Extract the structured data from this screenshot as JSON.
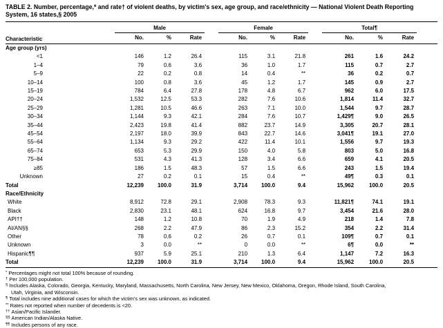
{
  "title": "TABLE 2. Number, percentage,* and rate† of violent deaths, by victim's sex, age group, and race/ethnicity — National Violent Death Reporting System, 16 states,§ 2005",
  "columns": {
    "characteristic": "Characteristic",
    "groups": [
      {
        "label": "Male",
        "sub": [
          "No.",
          "%",
          "Rate"
        ]
      },
      {
        "label": "Female",
        "sub": [
          "No.",
          "%",
          "Rate"
        ]
      },
      {
        "label": "Total¶",
        "sub": [
          "No.",
          "%",
          "Rate"
        ]
      }
    ]
  },
  "sections": [
    {
      "header": "Age group (yrs)",
      "label_align": "right",
      "rows": [
        {
          "label": "<1",
          "male": [
            "146",
            "1.2",
            "26.4"
          ],
          "female": [
            "115",
            "3.1",
            "21.8"
          ],
          "total": [
            "261",
            "1.6",
            "24.2"
          ]
        },
        {
          "label": "1–4",
          "male": [
            "79",
            "0.6",
            "3.6"
          ],
          "female": [
            "36",
            "1.0",
            "1.7"
          ],
          "total": [
            "115",
            "0.7",
            "2.7"
          ]
        },
        {
          "label": "5–9",
          "male": [
            "22",
            "0.2",
            "0.8"
          ],
          "female": [
            "14",
            "0.4",
            "**"
          ],
          "total": [
            "36",
            "0.2",
            "0.7"
          ]
        },
        {
          "label": "10–14",
          "male": [
            "100",
            "0.8",
            "3.6"
          ],
          "female": [
            "45",
            "1.2",
            "1.7"
          ],
          "total": [
            "145",
            "0.9",
            "2.7"
          ]
        },
        {
          "label": "15–19",
          "male": [
            "784",
            "6.4",
            "27.8"
          ],
          "female": [
            "178",
            "4.8",
            "6.7"
          ],
          "total": [
            "962",
            "6.0",
            "17.5"
          ]
        },
        {
          "label": "20–24",
          "male": [
            "1,532",
            "12.5",
            "53.3"
          ],
          "female": [
            "282",
            "7.6",
            "10.6"
          ],
          "total": [
            "1,814",
            "11.4",
            "32.7"
          ]
        },
        {
          "label": "25–29",
          "male": [
            "1,281",
            "10.5",
            "46.6"
          ],
          "female": [
            "263",
            "7.1",
            "10.0"
          ],
          "total": [
            "1,544",
            "9.7",
            "28.7"
          ]
        },
        {
          "label": "30–34",
          "male": [
            "1,144",
            "9.3",
            "42.1"
          ],
          "female": [
            "284",
            "7.6",
            "10.7"
          ],
          "total": [
            "1,429¶",
            "9.0",
            "26.5"
          ]
        },
        {
          "label": "35–44",
          "male": [
            "2,423",
            "19.8",
            "41.4"
          ],
          "female": [
            "882",
            "23.7",
            "14.9"
          ],
          "total": [
            "3,305",
            "20.7",
            "28.1"
          ]
        },
        {
          "label": "45–54",
          "male": [
            "2,197",
            "18.0",
            "39.9"
          ],
          "female": [
            "843",
            "22.7",
            "14.6"
          ],
          "total": [
            "3,041¶",
            "19.1",
            "27.0"
          ]
        },
        {
          "label": "55–64",
          "male": [
            "1,134",
            "9.3",
            "29.2"
          ],
          "female": [
            "422",
            "11.4",
            "10.1"
          ],
          "total": [
            "1,556",
            "9.7",
            "19.3"
          ]
        },
        {
          "label": "65–74",
          "male": [
            "653",
            "5.3",
            "29.9"
          ],
          "female": [
            "150",
            "4.0",
            "5.8"
          ],
          "total": [
            "803",
            "5.0",
            "16.8"
          ]
        },
        {
          "label": "75–84",
          "male": [
            "531",
            "4.3",
            "41.3"
          ],
          "female": [
            "128",
            "3.4",
            "6.6"
          ],
          "total": [
            "659",
            "4.1",
            "20.5"
          ]
        },
        {
          "label": "≥85",
          "male": [
            "186",
            "1.5",
            "48.3"
          ],
          "female": [
            "57",
            "1.5",
            "6.6"
          ],
          "total": [
            "243",
            "1.5",
            "19.4"
          ]
        },
        {
          "label": "Unknown",
          "male": [
            "27",
            "0.2",
            "0.1"
          ],
          "female": [
            "15",
            "0.4",
            "**"
          ],
          "total": [
            "49¶",
            "0.3",
            "0.1"
          ]
        }
      ],
      "total_row": {
        "label": "Total",
        "male": [
          "12,239",
          "100.0",
          "31.9"
        ],
        "female": [
          "3,714",
          "100.0",
          "9.4"
        ],
        "total": [
          "15,962",
          "100.0",
          "20.5"
        ]
      }
    },
    {
      "header": "Race/Ethnicity",
      "label_align": "left",
      "rows": [
        {
          "label": "White",
          "male": [
            "8,912",
            "72.8",
            "29.1"
          ],
          "female": [
            "2,908",
            "78.3",
            "9.3"
          ],
          "total": [
            "11,821¶",
            "74.1",
            "19.1"
          ]
        },
        {
          "label": "Black",
          "male": [
            "2,830",
            "23.1",
            "48.1"
          ],
          "female": [
            "624",
            "16.8",
            "9.7"
          ],
          "total": [
            "3,454",
            "21.6",
            "28.0"
          ]
        },
        {
          "label": "API††",
          "male": [
            "148",
            "1.2",
            "10.8"
          ],
          "female": [
            "70",
            "1.9",
            "4.9"
          ],
          "total": [
            "218",
            "1.4",
            "7.8"
          ]
        },
        {
          "label": "AI/AN§§",
          "male": [
            "268",
            "2.2",
            "47.9"
          ],
          "female": [
            "86",
            "2.3",
            "15.2"
          ],
          "total": [
            "354",
            "2.2",
            "31.4"
          ]
        },
        {
          "label": "Other",
          "male": [
            "78",
            "0.6",
            "0.2"
          ],
          "female": [
            "26",
            "0.7",
            "0.1"
          ],
          "total": [
            "109¶",
            "0.7",
            "0.1"
          ]
        },
        {
          "label": "Unknown",
          "male": [
            "3",
            "0.0",
            "**"
          ],
          "female": [
            "0",
            "0.0",
            "**"
          ],
          "total": [
            "6¶",
            "0.0",
            "**"
          ]
        },
        {
          "label": "Hispanic¶¶",
          "male": [
            "937",
            "5.9",
            "25.1"
          ],
          "female": [
            "210",
            "1.3",
            "6.4"
          ],
          "total": [
            "1,147",
            "7.2",
            "16.3"
          ]
        }
      ],
      "total_row": {
        "label": "Total",
        "male": [
          "12,239",
          "100.0",
          "31.9"
        ],
        "female": [
          "3,714",
          "100.0",
          "9.4"
        ],
        "total": [
          "15,962",
          "100.0",
          "20.5"
        ]
      }
    }
  ],
  "footnotes": [
    {
      "marker": "*",
      "text": "Percentages might not total 100% because of rounding."
    },
    {
      "marker": "†",
      "text": "Per 100,000 population."
    },
    {
      "marker": "§",
      "text": "Includes Alaska, Colorado, Georgia, Kentucky, Maryland, Massachusetts, North Carolina, New Jersey, New Mexico, Oklahoma, Oregon, Rhode Island, South Carolina, Utah, Virginia, and Wisconsin."
    },
    {
      "marker": "¶",
      "text": "Total includes nine additional cases for which the victim's sex was unknown, as indicated."
    },
    {
      "marker": "**",
      "text": "Rates not reported when number of decedents is <20."
    },
    {
      "marker": "††",
      "text": "Asian/Pacific Islander."
    },
    {
      "marker": "§§",
      "text": "American Indian/Alaska Native."
    },
    {
      "marker": "¶¶",
      "text": "Includes persons of any race."
    }
  ]
}
